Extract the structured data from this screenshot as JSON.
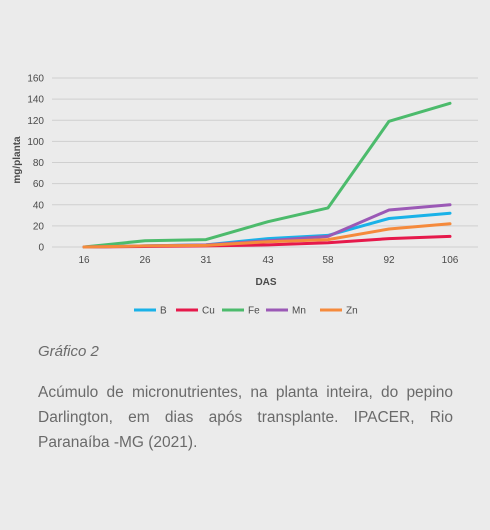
{
  "chart_data": {
    "type": "line",
    "title": "",
    "xlabel": "DAS",
    "ylabel": "mg/planta",
    "categories": [
      "16",
      "26",
      "31",
      "43",
      "58",
      "92",
      "106"
    ],
    "yticks": [
      0,
      20,
      40,
      60,
      80,
      100,
      120,
      140,
      160
    ],
    "ylim": [
      0,
      160
    ],
    "grid": true,
    "legend_position": "bottom",
    "series": [
      {
        "name": "B",
        "color": "#1ab2e8",
        "values": [
          0,
          1,
          2,
          8,
          11,
          27,
          32
        ]
      },
      {
        "name": "Cu",
        "color": "#e6194b",
        "values": [
          0,
          0.5,
          1,
          2,
          4,
          8,
          10
        ]
      },
      {
        "name": "Fe",
        "color": "#4cbb6c",
        "values": [
          0,
          6,
          7,
          24,
          37,
          119,
          136
        ]
      },
      {
        "name": "Mn",
        "color": "#9b59b6",
        "values": [
          0,
          1,
          2,
          6,
          10,
          35,
          40
        ]
      },
      {
        "name": "Zn",
        "color": "#f58a3c",
        "values": [
          0,
          1,
          1.5,
          5,
          7,
          17,
          22
        ]
      }
    ]
  },
  "caption": {
    "label": "Gráfico 2",
    "text": "Acúmulo de micronutrientes, na planta inteira, do pepino Darlington, em dias após transplante. IPACER, Rio Paranaíba -MG (2021)."
  }
}
